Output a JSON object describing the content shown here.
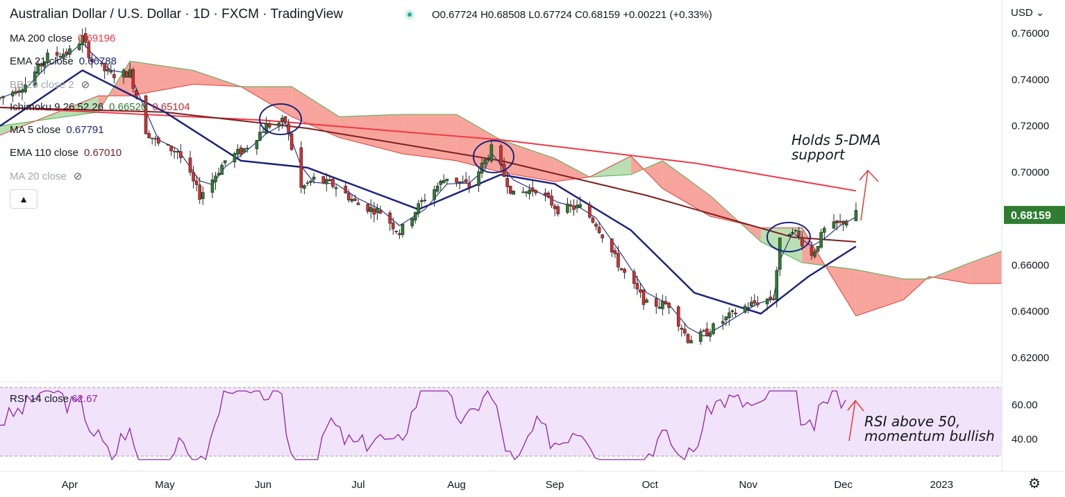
{
  "header": {
    "title": "Australian Dollar / U.S. Dollar · 1D · FXCM · TradingView",
    "open": "O0.67724",
    "high": "H0.68508",
    "low": "L0.67724",
    "close": "C0.68159",
    "change": "+0.00221 (+0.33%)"
  },
  "currency": "USD",
  "indicators": [
    {
      "name": "MA 200 close",
      "value": "0.69196",
      "color": "#f23645"
    },
    {
      "name": "EMA 21 close",
      "value": "0.66788",
      "color": "#1a237e"
    },
    {
      "name": "BB 20 close 2",
      "value": "",
      "color": "#787b86"
    },
    {
      "name": "Ichimoku 9 26 52 26",
      "value": "0.66520",
      "value2": "0.65104",
      "color": "#2e7d32",
      "color2": "#c62828"
    },
    {
      "name": "MA 5 close",
      "value": "0.67791",
      "color": "#1a237e"
    },
    {
      "name": "EMA 110 close",
      "value": "0.67010",
      "color": "#7f1d1d"
    },
    {
      "name": "MA 20 close",
      "value": "",
      "color": "#a3a6af"
    }
  ],
  "rsi": {
    "name": "RSI 14 close",
    "value": "62.67"
  },
  "price_tag": "0.68159",
  "annotations": {
    "top": "Holds 5-DMA\nsupport",
    "bottom": "RSI above 50,\nmomentum bullish"
  },
  "icons": [
    "eye-off-icon",
    "chevron-up-icon",
    "gear-icon",
    "chevron-down-icon"
  ],
  "colors": {
    "up": "#2e7d32",
    "down": "#d32f2f",
    "kumo_bull": "#b9dfb2",
    "kumo_bear": "#f7a59c",
    "rsi": "#8e24aa",
    "rsi_band": "#f1e3fa"
  },
  "chart_data": [
    {
      "type": "candlestick",
      "title": "Australian Dollar / U.S. Dollar · 1D · FXCM · TradingView",
      "x_ticks": [
        "Apr",
        "May",
        "Jun",
        "Jul",
        "Aug",
        "Sep",
        "Oct",
        "Nov",
        "Dec",
        "2023"
      ],
      "y_ticks": [
        "0.76000",
        "0.74000",
        "0.72000",
        "0.70000",
        "0.66000",
        "0.64000",
        "0.62000"
      ],
      "ylim": [
        0.612,
        0.765
      ],
      "close_path": [
        [
          "2022-03-10",
          0.732
        ],
        [
          "2022-03-18",
          0.738
        ],
        [
          "2022-03-25",
          0.75
        ],
        [
          "2022-04-01",
          0.752
        ],
        [
          "2022-04-05",
          0.758
        ],
        [
          "2022-04-08",
          0.748
        ],
        [
          "2022-04-14",
          0.742
        ],
        [
          "2022-04-20",
          0.743
        ],
        [
          "2022-04-25",
          0.718
        ],
        [
          "2022-04-29",
          0.712
        ],
        [
          "2022-05-05",
          0.709
        ],
        [
          "2022-05-12",
          0.69
        ],
        [
          "2022-05-16",
          0.697
        ],
        [
          "2022-05-20",
          0.705
        ],
        [
          "2022-05-26",
          0.71
        ],
        [
          "2022-06-02",
          0.72
        ],
        [
          "2022-06-08",
          0.722
        ],
        [
          "2022-06-13",
          0.693
        ],
        [
          "2022-06-17",
          0.697
        ],
        [
          "2022-06-24",
          0.694
        ],
        [
          "2022-07-01",
          0.686
        ],
        [
          "2022-07-08",
          0.683
        ],
        [
          "2022-07-14",
          0.674
        ],
        [
          "2022-07-22",
          0.689
        ],
        [
          "2022-07-29",
          0.698
        ],
        [
          "2022-08-05",
          0.694
        ],
        [
          "2022-08-10",
          0.705
        ],
        [
          "2022-08-12",
          0.71
        ],
        [
          "2022-08-19",
          0.69
        ],
        [
          "2022-08-26",
          0.693
        ],
        [
          "2022-09-02",
          0.684
        ],
        [
          "2022-09-09",
          0.685
        ],
        [
          "2022-09-14",
          0.678
        ],
        [
          "2022-09-22",
          0.658
        ],
        [
          "2022-09-30",
          0.643
        ],
        [
          "2022-10-07",
          0.643
        ],
        [
          "2022-10-13",
          0.628
        ],
        [
          "2022-10-18",
          0.63
        ],
        [
          "2022-10-24",
          0.636
        ],
        [
          "2022-10-31",
          0.642
        ],
        [
          "2022-11-04",
          0.644
        ],
        [
          "2022-11-09",
          0.646
        ],
        [
          "2022-11-11",
          0.67
        ],
        [
          "2022-11-15",
          0.676
        ],
        [
          "2022-11-21",
          0.664
        ],
        [
          "2022-11-25",
          0.675
        ],
        [
          "2022-11-30",
          0.678
        ],
        [
          "2022-12-05",
          0.682
        ]
      ],
      "ma200": [
        [
          "2022-03-10",
          0.728
        ],
        [
          "2022-06-01",
          0.7225
        ],
        [
          "2022-08-15",
          0.714
        ],
        [
          "2022-10-15",
          0.704
        ],
        [
          "2022-12-05",
          0.692
        ]
      ],
      "ema110": [
        [
          "2022-03-10",
          0.728
        ],
        [
          "2022-05-01",
          0.726
        ],
        [
          "2022-06-15",
          0.719
        ],
        [
          "2022-08-15",
          0.705
        ],
        [
          "2022-09-30",
          0.69
        ],
        [
          "2022-11-15",
          0.672
        ],
        [
          "2022-12-05",
          0.67
        ]
      ],
      "ema21": [
        [
          "2022-03-10",
          0.72
        ],
        [
          "2022-04-05",
          0.744
        ],
        [
          "2022-05-01",
          0.726
        ],
        [
          "2022-05-25",
          0.705
        ],
        [
          "2022-06-15",
          0.702
        ],
        [
          "2022-07-20",
          0.684
        ],
        [
          "2022-08-15",
          0.699
        ],
        [
          "2022-09-01",
          0.695
        ],
        [
          "2022-09-25",
          0.675
        ],
        [
          "2022-10-15",
          0.648
        ],
        [
          "2022-11-05",
          0.639
        ],
        [
          "2022-11-20",
          0.655
        ],
        [
          "2022-12-05",
          0.668
        ]
      ],
      "rsi": {
        "ylim": [
          25,
          70
        ],
        "y_ticks": [
          "60.00",
          "40.00"
        ],
        "levels": [
          70,
          30
        ],
        "last": 62.67
      }
    }
  ]
}
